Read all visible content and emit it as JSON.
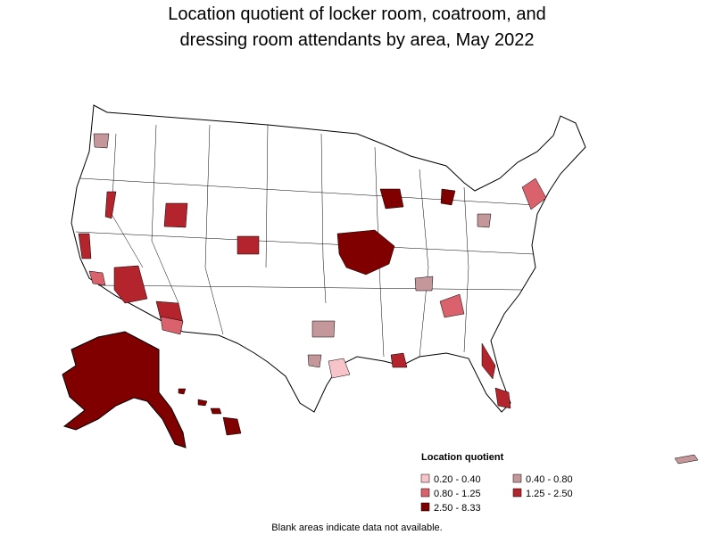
{
  "title_lines": [
    "Location quotient of locker room, coatroom, and",
    "dressing room attendants by area, May 2022"
  ],
  "legend": {
    "title": "Location quotient",
    "items": [
      {
        "label": "0.20 - 0.40",
        "color": "#f7c4ca"
      },
      {
        "label": "0.40 - 0.80",
        "color": "#c4979b"
      },
      {
        "label": "0.80 - 1.25",
        "color": "#d9626c"
      },
      {
        "label": "1.25 - 2.50",
        "color": "#b3242c"
      },
      {
        "label": "2.50 - 8.33",
        "color": "#800000"
      }
    ]
  },
  "footnote": "Blank areas indicate data not available."
}
